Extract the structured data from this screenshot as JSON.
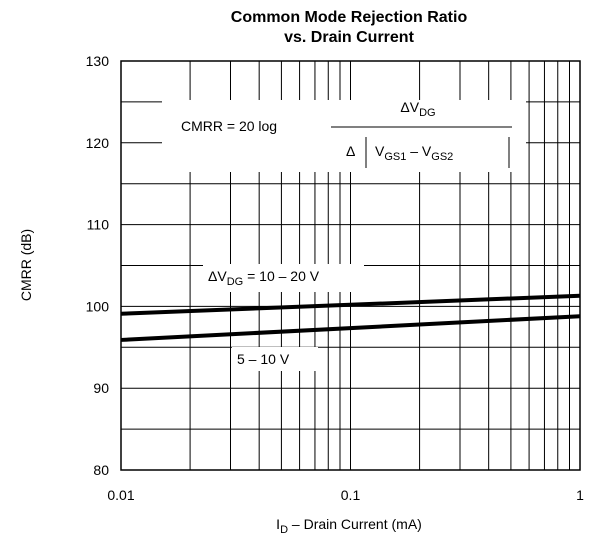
{
  "chart_data": {
    "type": "line",
    "title": "Common Mode Rejection Ratio",
    "subtitle": "vs. Drain Current",
    "xlabel": {
      "main": "I",
      "sub": "D",
      "rest": " – Drain Current (mA)"
    },
    "ylabel": "CMRR (dB)",
    "xscale": "log",
    "xlim": [
      0.01,
      1
    ],
    "ylim": [
      80,
      130
    ],
    "x_tick_labels": [
      "0.01",
      "0.1",
      "1"
    ],
    "y_tick_labels": [
      "80",
      "90",
      "100",
      "110",
      "120",
      "130"
    ],
    "grid": true,
    "series": [
      {
        "name": "ΔV_DG = 10 – 20 V",
        "x": [
          0.01,
          1
        ],
        "y": [
          99.1,
          101.3
        ]
      },
      {
        "name": "5 – 10 V",
        "x": [
          0.01,
          1
        ],
        "y": [
          95.9,
          98.8
        ]
      }
    ],
    "annotations": {
      "formula_lhs": "CMRR = 20 log",
      "numerator": {
        "main": "ΔV",
        "sub": "DG"
      },
      "denominator": {
        "delta": "Δ",
        "t1": "V",
        "t1_sub": "GS1",
        "minus": " – V",
        "t2_sub": "GS2"
      },
      "label_upper": {
        "main": "ΔV",
        "sub": "DG",
        "rest": " = 10 – 20 V"
      },
      "label_lower": "5 – 10 V"
    }
  }
}
